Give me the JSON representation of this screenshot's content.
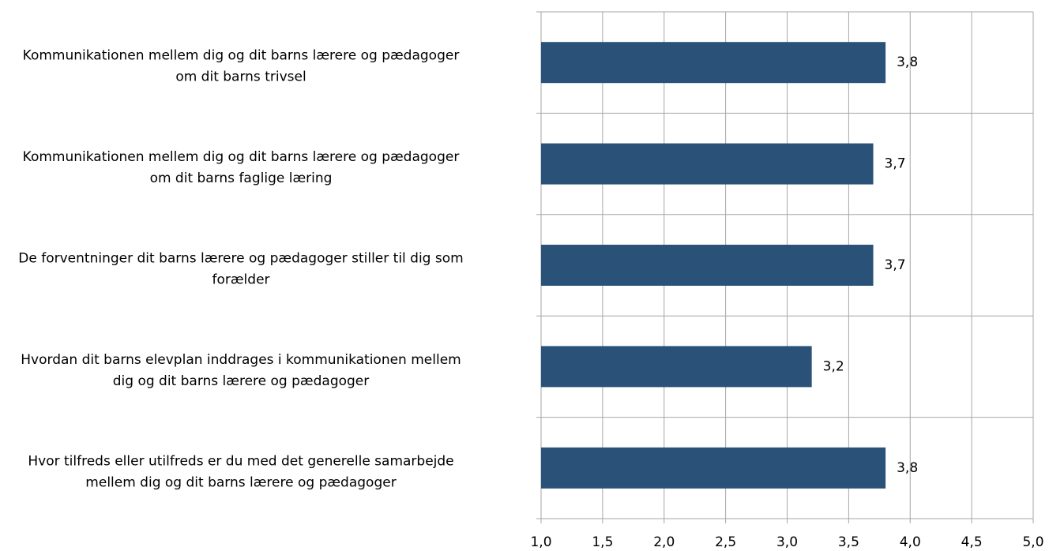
{
  "chart_data": {
    "type": "barh",
    "categories": [
      "Kommunikationen mellem dig og dit barns lærere og pædagoger\nom dit barns trivsel",
      "Kommunikationen mellem dig og dit barns lærere og pædagoger\nom dit barns faglige læring",
      "De forventninger dit barns lærere og pædagoger stiller til dig som\nforælder",
      "Hvordan dit barns elevplan inddrages i kommunikationen mellem\ndig og dit barns lærere og pædagoger",
      "Hvor tilfreds eller utilfreds er du med det generelle samarbejde\nmellem dig og dit barns lærere og pædagoger"
    ],
    "values": [
      3.8,
      3.7,
      3.7,
      3.2,
      3.8
    ],
    "value_labels": [
      "3,8",
      "3,7",
      "3,7",
      "3,2",
      "3,8"
    ],
    "color": "#2a5278",
    "xlim": [
      1,
      5
    ],
    "xticks": [
      {
        "value": 1,
        "label": "1,0"
      },
      {
        "value": 1.5,
        "label": "1,5"
      },
      {
        "value": 2,
        "label": "2,0"
      },
      {
        "value": 2.5,
        "label": "2,5"
      },
      {
        "value": 3,
        "label": "3,0"
      },
      {
        "value": 3.5,
        "label": "3,5"
      },
      {
        "value": 4,
        "label": "4,0"
      },
      {
        "value": 4.5,
        "label": "4,5"
      },
      {
        "value": 5,
        "label": "5,0"
      }
    ],
    "grid": true
  }
}
